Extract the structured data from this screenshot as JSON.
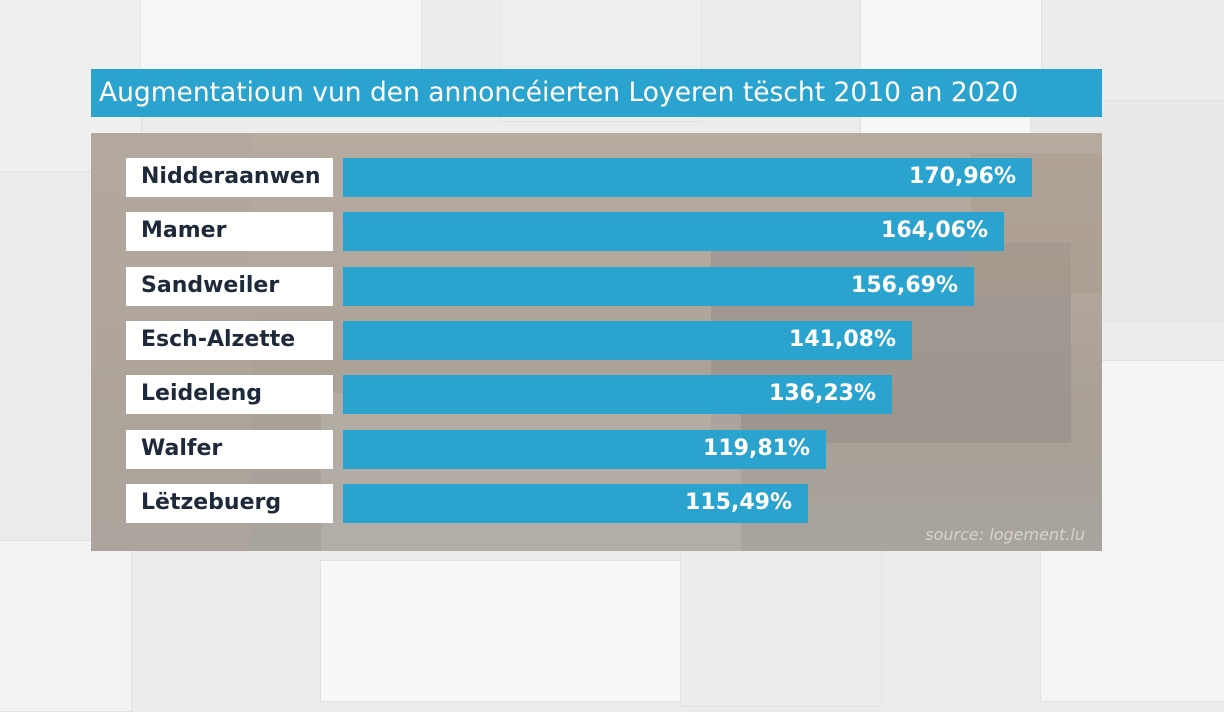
{
  "chart_data": {
    "type": "bar",
    "orientation": "horizontal",
    "title": "Augmentatioun vun den annoncéierten Loyeren tëscht 2010 an 2020",
    "categories": [
      "Nidderaanwen",
      "Mamer",
      "Sandweiler",
      "Esch-Alzette",
      "Leideleng",
      "Walfer",
      "Lëtzebuerg"
    ],
    "values": [
      170.96,
      164.06,
      156.69,
      141.08,
      136.23,
      119.81,
      115.49
    ],
    "value_labels": [
      "170,96%",
      "164,06%",
      "156,69%",
      "141,08%",
      "136,23%",
      "119,81%",
      "115,49%"
    ],
    "unit": "%",
    "xlim": [
      0,
      170.96
    ],
    "source": "source: logement.lu",
    "bar_color": "#2aa3cf",
    "label_bg_color": "#ffffff",
    "label_text_color": "#1e2a3a"
  }
}
